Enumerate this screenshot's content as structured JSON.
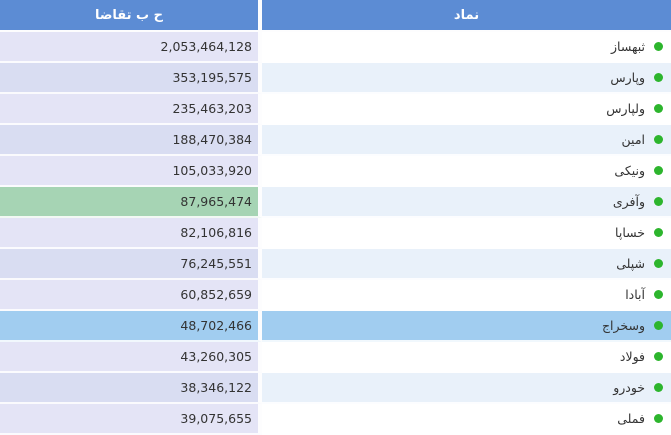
{
  "table": {
    "columns": [
      {
        "key": "symbol",
        "label": "نماد"
      },
      {
        "key": "demand",
        "label": "ح ب تقاضا"
      }
    ],
    "rows": [
      {
        "symbol": "ثبهساز",
        "demand": "2,053,464,128",
        "highlight": "none"
      },
      {
        "symbol": "وپارس",
        "demand": "353,195,575",
        "highlight": "none"
      },
      {
        "symbol": "ولپارس",
        "demand": "235,463,203",
        "highlight": "none"
      },
      {
        "symbol": "امین",
        "demand": "188,470,384",
        "highlight": "none"
      },
      {
        "symbol": "ونیکی",
        "demand": "105,033,920",
        "highlight": "none"
      },
      {
        "symbol": "وآفری",
        "demand": "87,965,474",
        "highlight": "green"
      },
      {
        "symbol": "خساپا",
        "demand": "82,106,816",
        "highlight": "none"
      },
      {
        "symbol": "شپلی",
        "demand": "76,245,551",
        "highlight": "none"
      },
      {
        "symbol": "آبادا",
        "demand": "60,852,659",
        "highlight": "none"
      },
      {
        "symbol": "وسخراج",
        "demand": "48,702,466",
        "highlight": "blue"
      },
      {
        "symbol": "فولاد",
        "demand": "43,260,305",
        "highlight": "none"
      },
      {
        "symbol": "خودرو",
        "demand": "38,346,122",
        "highlight": "none"
      },
      {
        "symbol": "فملی",
        "demand": "39,075,655",
        "highlight": "none"
      }
    ],
    "icons": {
      "status_dot": "green-circle"
    },
    "colors": {
      "header_bg": "#5c8cd4",
      "header_text": "#ffffff",
      "value_cell_odd": "#e4e4f6",
      "value_cell_even": "#d9ddf2",
      "symbol_cell_odd": "#ffffff",
      "symbol_cell_even": "#e9f1fa",
      "highlight_green": "#a6d4b4",
      "highlight_blue": "#a1cdf0",
      "dot_green": "#2db52d",
      "text": "#333333"
    }
  }
}
